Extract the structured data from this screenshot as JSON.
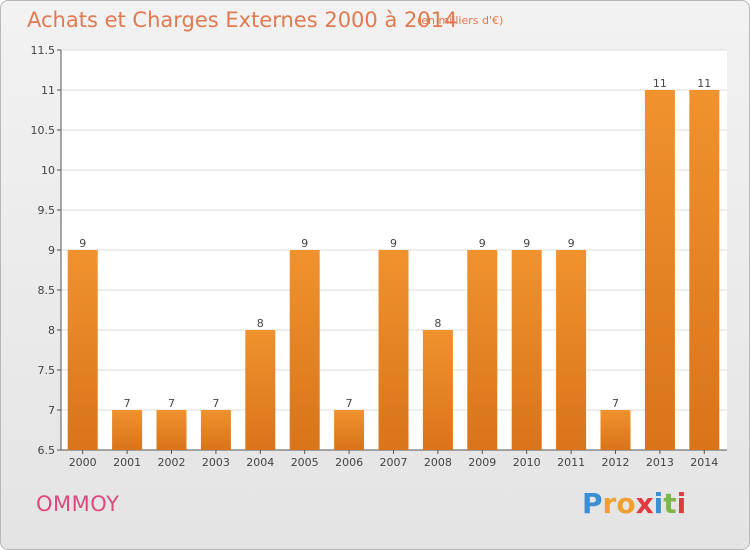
{
  "header": {
    "title": "Achats et Charges Externes 2000 à 2014",
    "subtitle": "(en milliers d'€)"
  },
  "footer": {
    "commune": "OMMOY",
    "logo": {
      "letters": [
        "P",
        "r",
        "o",
        "x",
        "i",
        "t",
        "i"
      ],
      "colors": [
        "#3a8fd6",
        "#f0a030",
        "#f0a030",
        "#e03a40",
        "#3a8fd6",
        "#7ab84a",
        "#e03a40"
      ]
    }
  },
  "chart_data": {
    "type": "bar",
    "categories": [
      "2000",
      "2001",
      "2002",
      "2003",
      "2004",
      "2005",
      "2006",
      "2007",
      "2008",
      "2009",
      "2010",
      "2011",
      "2012",
      "2013",
      "2014"
    ],
    "values": [
      9,
      7,
      7,
      7,
      8,
      9,
      7,
      9,
      8,
      9,
      9,
      9,
      7,
      11,
      11
    ],
    "data_labels": [
      "9",
      "7",
      "7",
      "7",
      "8",
      "9",
      "7",
      "9",
      "8",
      "9",
      "9",
      "9",
      "7",
      "11",
      "11"
    ],
    "ylim": [
      6.5,
      11.5
    ],
    "yticks": [
      "6.5",
      "7",
      "7.5",
      "8",
      "8.5",
      "9",
      "9.5",
      "10",
      "10.5",
      "11",
      "11.5"
    ],
    "grid": true,
    "bar_color": "#f0922e",
    "bar_color_dark": "#d8741a"
  }
}
